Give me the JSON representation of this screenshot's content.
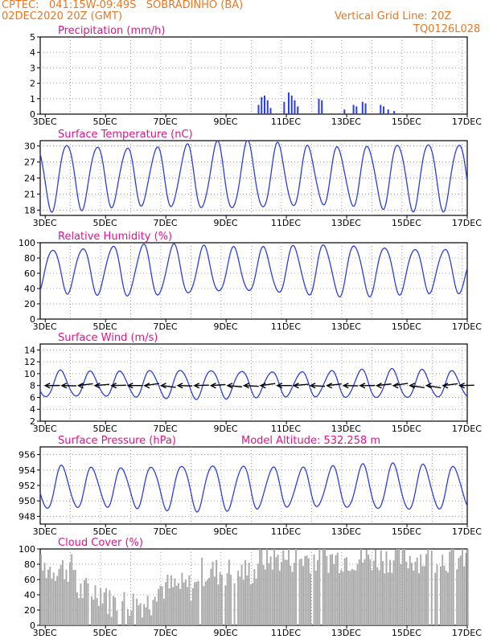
{
  "header": {
    "line1": "CPTEC:   041:15W-09:49S   SOBRADINHO (BA)",
    "line2": "02DEC2020 20Z (GMT)",
    "grid_note": "Vertical Grid Line: 20Z",
    "code": "TQ0126L028",
    "title_color": "#e87722"
  },
  "colors": {
    "label": "#e0138a",
    "line": "#2b3ee0",
    "cloud": "#aaaaaa",
    "arrow": "#000000"
  },
  "chart_data": [
    {
      "id": "precip",
      "type": "bar",
      "title": "Precipitation (mm/h)",
      "ylim": [
        0,
        5
      ],
      "yticks": [
        "0",
        "1",
        "2",
        "3",
        "4",
        "5"
      ],
      "xlabels": [
        "3DEC",
        "5DEC",
        "7DEC",
        "9DEC",
        "11DEC",
        "13DEC",
        "15DEC",
        "17DEC"
      ],
      "start_day": 2.833,
      "end_day": 17.0,
      "rain_events": [
        {
          "day": 10.05,
          "value": 0.6
        },
        {
          "day": 10.15,
          "value": 1.1
        },
        {
          "day": 10.25,
          "value": 1.2
        },
        {
          "day": 10.35,
          "value": 0.9
        },
        {
          "day": 10.45,
          "value": 0.4
        },
        {
          "day": 10.9,
          "value": 0.8
        },
        {
          "day": 11.05,
          "value": 1.4
        },
        {
          "day": 11.15,
          "value": 1.2
        },
        {
          "day": 11.25,
          "value": 0.9
        },
        {
          "day": 11.35,
          "value": 0.5
        },
        {
          "day": 12.05,
          "value": 1.0
        },
        {
          "day": 12.15,
          "value": 0.9
        },
        {
          "day": 12.9,
          "value": 0.3
        },
        {
          "day": 13.2,
          "value": 0.6
        },
        {
          "day": 13.3,
          "value": 0.5
        },
        {
          "day": 13.5,
          "value": 0.8
        },
        {
          "day": 13.6,
          "value": 0.7
        },
        {
          "day": 14.1,
          "value": 0.6
        },
        {
          "day": 14.2,
          "value": 0.5
        },
        {
          "day": 14.35,
          "value": 0.3
        },
        {
          "day": 14.55,
          "value": 0.2
        }
      ]
    },
    {
      "id": "temp",
      "type": "line",
      "title": "Surface Temperature (nC)",
      "ylim": [
        17,
        31
      ],
      "yticks": [
        "18",
        "21",
        "24",
        "27",
        "30"
      ],
      "xlabels": [
        "3DEC",
        "5DEC",
        "7DEC",
        "9DEC",
        "11DEC",
        "13DEC",
        "15DEC",
        "17DEC"
      ],
      "diurnal": {
        "min": 18.5,
        "max": 30.2,
        "peak_hour": 17
      }
    },
    {
      "id": "rh",
      "type": "line",
      "title": "Relative Humidity (%)",
      "ylim": [
        0,
        100
      ],
      "yticks": [
        "0",
        "20",
        "40",
        "60",
        "80",
        "100"
      ],
      "xlabels": [
        "3DEC",
        "5DEC",
        "7DEC",
        "9DEC",
        "11DEC",
        "13DEC",
        "15DEC",
        "17DEC"
      ],
      "diurnal": {
        "min": 33,
        "max": 95,
        "peak_hour": 6
      }
    },
    {
      "id": "wind",
      "type": "line",
      "title": "Surface Wind (m/s)",
      "ylim": [
        2,
        15
      ],
      "yticks": [
        "2",
        "4",
        "6",
        "8",
        "10",
        "12",
        "14"
      ],
      "xlabels": [
        "3DEC",
        "5DEC",
        "7DEC",
        "9DEC",
        "11DEC",
        "13DEC",
        "15DEC",
        "17DEC"
      ],
      "diurnal": {
        "min": 6,
        "max": 10.5,
        "peak_hour": 12
      },
      "arrow_level": 8
    },
    {
      "id": "press",
      "type": "line",
      "title": "Surface Pressure (hPa)",
      "subtitle": "Model Altitude: 532.258  m",
      "ylim": [
        947,
        957
      ],
      "yticks": [
        "948",
        "950",
        "952",
        "954",
        "956"
      ],
      "xlabels": [
        "3DEC",
        "5DEC",
        "7DEC",
        "9DEC",
        "11DEC",
        "13DEC",
        "15DEC",
        "17DEC"
      ],
      "diurnal": {
        "min": 949,
        "max": 954.5,
        "peak_hour": 13
      }
    },
    {
      "id": "cloud",
      "type": "bar",
      "title": "Cloud Cover (%)",
      "ylim": [
        0,
        100
      ],
      "yticks": [
        "0",
        "20",
        "40",
        "60",
        "80",
        "100"
      ],
      "xlabels": [
        "3DEC",
        "5DEC",
        "7DEC",
        "9DEC",
        "11DEC",
        "13DEC",
        "15DEC",
        "17DEC"
      ],
      "segments": [
        {
          "from": 2.833,
          "to": 4.0,
          "level": 75
        },
        {
          "from": 4.0,
          "to": 5.0,
          "level": 45
        },
        {
          "from": 5.0,
          "to": 6.5,
          "level": 30
        },
        {
          "from": 6.5,
          "to": 8.0,
          "level": 50
        },
        {
          "from": 8.0,
          "to": 10.0,
          "level": 70
        },
        {
          "from": 10.0,
          "to": 17.0,
          "level": 88
        }
      ]
    }
  ]
}
